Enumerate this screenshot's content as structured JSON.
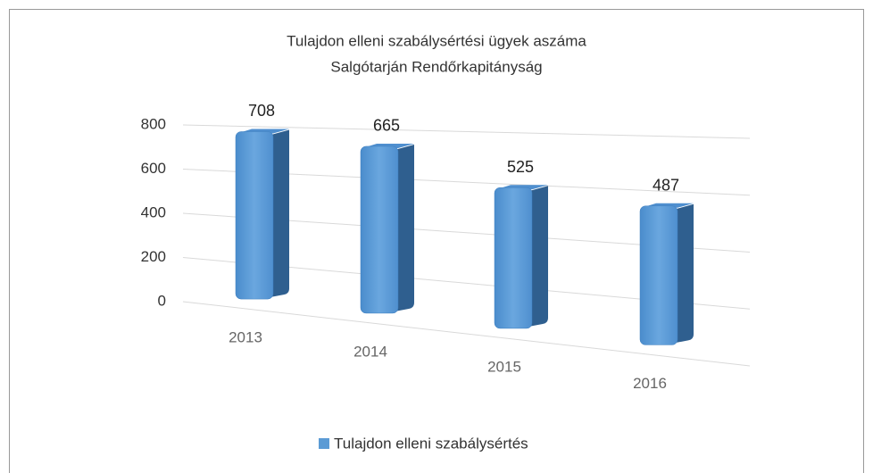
{
  "chart_data": {
    "type": "bar3d",
    "title": "Tulajdon elleni szabálysértési ügyek aszáma",
    "subtitle": "Salgótarján Rendőrkapitányság",
    "categories": [
      "2013",
      "2014",
      "2015",
      "2016"
    ],
    "series": [
      {
        "name": "Tulajdon elleni szabálysértés",
        "color": "#5b9bd5",
        "values": [
          708,
          665,
          525,
          487
        ]
      }
    ],
    "ylim": [
      0,
      800
    ],
    "yticks": [
      0,
      200,
      400,
      600,
      800
    ],
    "grid": true,
    "legend": "bottom"
  }
}
